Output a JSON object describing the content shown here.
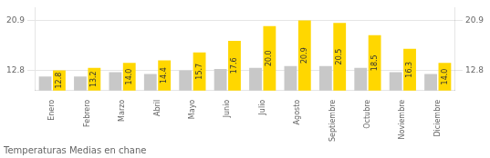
{
  "chart_data": {
    "type": "bar",
    "title": "Temperaturas Medias en chane",
    "categories": [
      "Enero",
      "Febrero",
      "Marzo",
      "Abril",
      "Mayo",
      "Junio",
      "Julio",
      "Agosto",
      "Septiembre",
      "Octubre",
      "Noviembre",
      "Diciembre"
    ],
    "series": [
      {
        "color": "#C8C8C8",
        "values": [
          11.8,
          11.8,
          12.5,
          12.2,
          12.8,
          13.0,
          13.2,
          13.5,
          13.5,
          13.2,
          12.5,
          12.2
        ]
      },
      {
        "color": "#FFD700",
        "values": [
          12.8,
          13.2,
          14.0,
          14.4,
          15.7,
          17.6,
          20.0,
          20.9,
          20.5,
          18.5,
          16.3,
          14.0
        ],
        "data_labels": true,
        "value_labels": [
          "12.8",
          "13.2",
          "14.0",
          "14.4",
          "15.7",
          "17.6",
          "20.0",
          "20.9",
          "20.5",
          "18.5",
          "16.3",
          "14.0"
        ]
      }
    ],
    "ylim": [
      9.5,
      23.0
    ],
    "yticks": [
      12.8,
      20.9
    ],
    "y2lim": [
      9.5,
      23.0
    ],
    "y2ticks": [
      12.8,
      20.9
    ],
    "grid": true
  }
}
